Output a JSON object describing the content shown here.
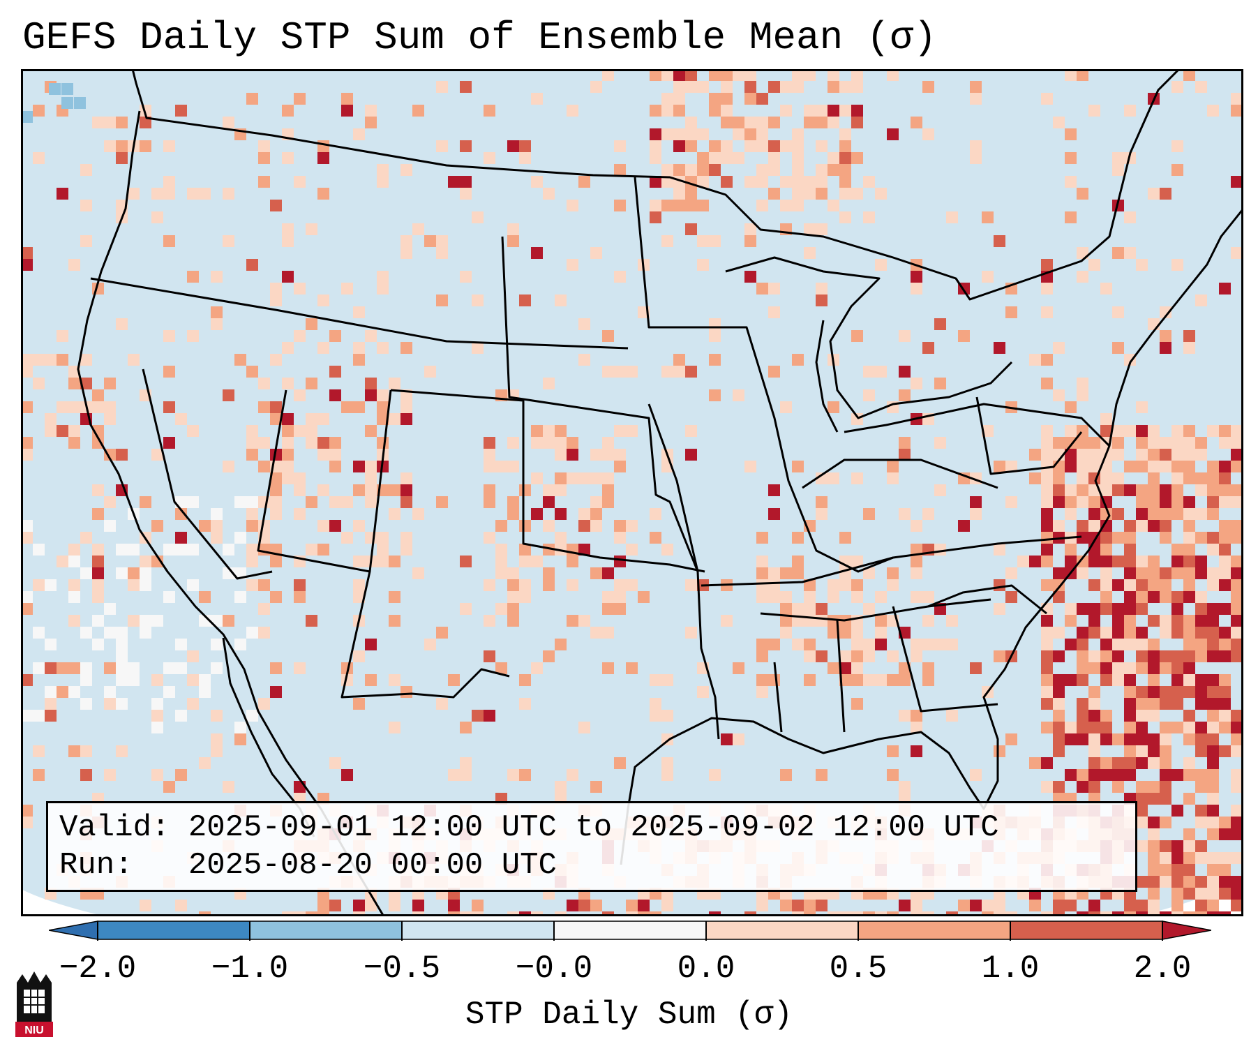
{
  "title": "GEFS Daily STP Sum of Ensemble Mean (σ)",
  "info": {
    "valid_line": "Valid: 2025-09-01 12:00 UTC to 2025-09-02 12:00 UTC",
    "run_line": "Run:   2025-08-20 00:00 UTC"
  },
  "colorbar": {
    "label": "STP Daily Sum (σ)",
    "ticks": [
      "−2.0",
      "−1.0",
      "−0.5",
      "−0.0",
      "0.0",
      "0.5",
      "1.0",
      "2.0"
    ],
    "colors": [
      "#3d88c2",
      "#8fc2de",
      "#d1e5f0",
      "#f7f7f7",
      "#fbd7c4",
      "#f4a582",
      "#d6604d",
      "#b2182b"
    ],
    "extend_low_color": "#2f6fb0",
    "extend_high_color": "#b2182b"
  },
  "map": {
    "background_color": "#d1e5f0",
    "region": "Contiguous United States, southern Canada, northern Mexico, Gulf of Mexico, western Atlantic"
  },
  "logo": {
    "text": "NIU"
  }
}
